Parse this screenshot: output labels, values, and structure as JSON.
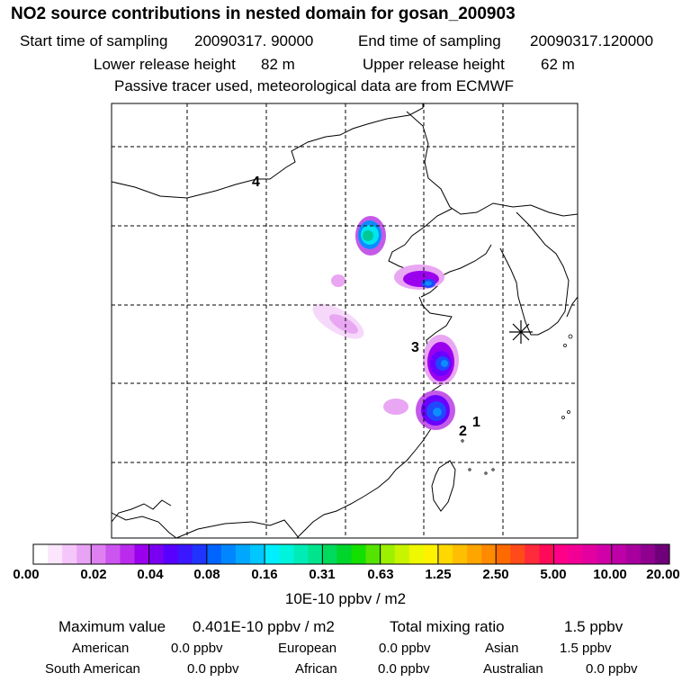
{
  "header": {
    "title": "NO2 source contributions in nested domain for gosan_200903",
    "start_label": "Start time of sampling",
    "start_value": "20090317. 90000",
    "end_label": "End time of sampling",
    "end_value": "20090317.120000",
    "lower_label": "Lower release height",
    "lower_value": "82 m",
    "upper_label": "Upper release height",
    "upper_value": "62 m",
    "note": "Passive tracer used, meteorological data are from ECMWF"
  },
  "map": {
    "receptor_symbol": "gosan-receptor",
    "markers": [
      "1",
      "2",
      "3",
      "4"
    ],
    "plume_colors": {
      "faint": "#f6d9fa",
      "light": "#e9a6f2",
      "mid": "#c45ae8",
      "purple": "#9b00ee",
      "violet": "#6a00ff",
      "blue": "#2147ff",
      "sky": "#0b8cff",
      "cyan": "#00e5f0",
      "teal": "#00c896"
    }
  },
  "colorbar": {
    "ticks": [
      "0.00",
      "0.02",
      "0.04",
      "0.08",
      "0.16",
      "0.31",
      "0.63",
      "1.25",
      "2.50",
      "5.00",
      "10.00",
      "20.00"
    ],
    "colors": [
      "#ffffff",
      "#fbe6fd",
      "#f4c6f9",
      "#e9a3f4",
      "#df80f2",
      "#cd55ef",
      "#bb2bee",
      "#9b00ee",
      "#7a00f2",
      "#5800ff",
      "#3a17ff",
      "#1f35ff",
      "#0064ff",
      "#0087ff",
      "#00a7ff",
      "#00c7ff",
      "#00eeff",
      "#00f4dd",
      "#00ecb7",
      "#00e48e",
      "#00da5c",
      "#00d52c",
      "#14e000",
      "#55e300",
      "#9cf000",
      "#c8f400",
      "#eef800",
      "#fff200",
      "#ffd800",
      "#ffbf00",
      "#ffa500",
      "#ff8a00",
      "#ff6a00",
      "#ff4a1a",
      "#ff2a3a",
      "#ff0a58",
      "#ff0088",
      "#f20096",
      "#e300a0",
      "#d100a8",
      "#be00a8",
      "#a8009e",
      "#8f0090",
      "#70007a"
    ],
    "unit": "10E-10 ppbv / m2"
  },
  "summary": {
    "max_label": "Maximum value",
    "max_value": "0.401E-10 ppbv / m2",
    "total_label": "Total mixing ratio",
    "total_value": "1.5 ppbv",
    "regions": [
      {
        "name": "American",
        "value": "0.0 ppbv"
      },
      {
        "name": "European",
        "value": "0.0 ppbv"
      },
      {
        "name": "Asian",
        "value": "1.5 ppbv"
      },
      {
        "name": "South American",
        "value": "0.0 ppbv"
      },
      {
        "name": "African",
        "value": "0.0 ppbv"
      },
      {
        "name": "Australian",
        "value": "0.0 ppbv"
      }
    ]
  }
}
